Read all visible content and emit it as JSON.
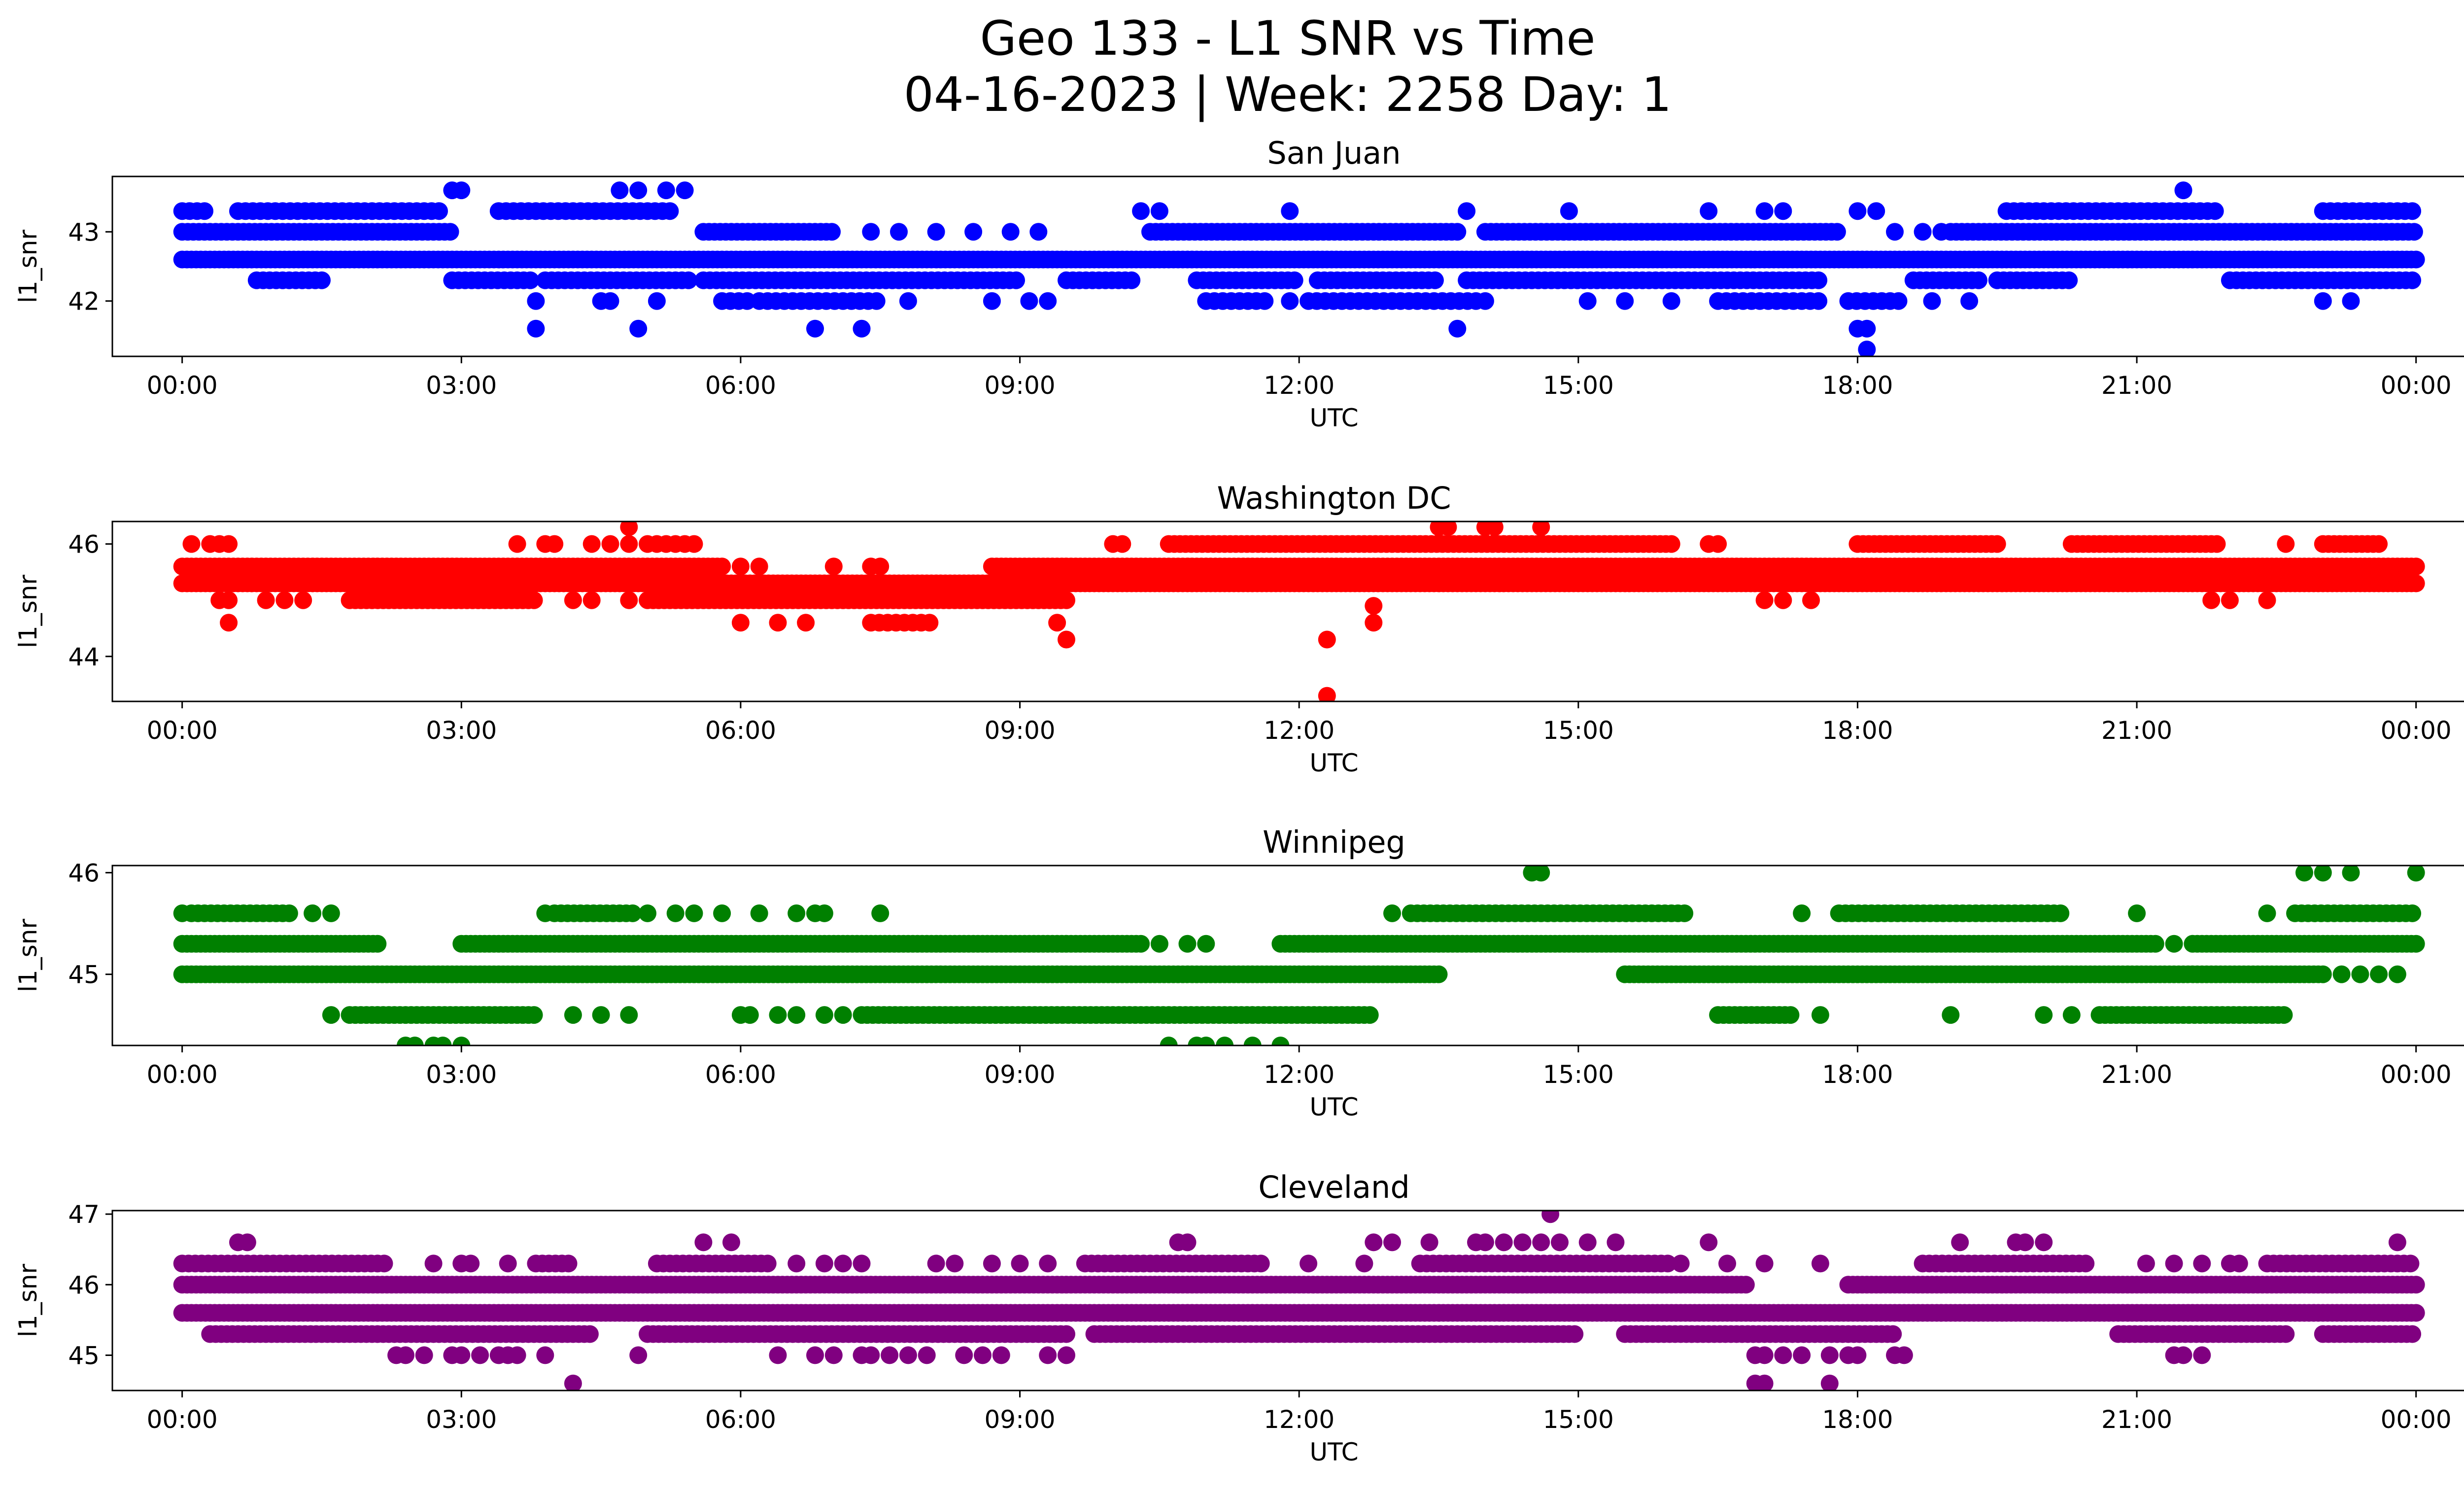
{
  "figure": {
    "title_line1": "Geo 133 - L1 SNR vs Time",
    "title_line2": "04-16-2023 | Week: 2258 Day: 1"
  },
  "chart_data": [
    {
      "type": "scatter",
      "title": "San Juan",
      "xlabel": "UTC",
      "ylabel": "l1_snr",
      "color": "#0000ff",
      "xlim_hours": [
        -0.75,
        25.5
      ],
      "ylim": [
        41.2,
        43.8
      ],
      "x_ticks": [
        "00:00",
        "03:00",
        "06:00",
        "09:00",
        "12:00",
        "15:00",
        "18:00",
        "21:00",
        "00:00"
      ],
      "y_ticks": [
        42,
        43
      ],
      "bands": [
        {
          "y": 42.6,
          "segments": [
            [
              0.0,
              24.0
            ]
          ],
          "spacing": 0.05
        },
        {
          "y": 43.0,
          "segments": [
            [
              0.0,
              2.9
            ],
            [
              5.6,
              7.0
            ],
            [
              10.4,
              13.7
            ],
            [
              14.0,
              17.8
            ],
            [
              19.0,
              24.0
            ]
          ],
          "spacing": 0.06
        },
        {
          "y": 43.3,
          "segments": [
            [
              0.0,
              0.3
            ],
            [
              0.6,
              2.8
            ],
            [
              3.4,
              5.3
            ],
            [
              19.6,
              21.9
            ],
            [
              23.0,
              24.0
            ]
          ],
          "spacing": 0.08
        },
        {
          "y": 42.3,
          "segments": [
            [
              0.8,
              1.5
            ],
            [
              2.9,
              3.8
            ],
            [
              3.9,
              5.5
            ],
            [
              5.6,
              9.0
            ],
            [
              9.5,
              10.2
            ],
            [
              10.9,
              12.0
            ],
            [
              12.2,
              13.5
            ],
            [
              13.8,
              17.6
            ],
            [
              18.6,
              19.3
            ],
            [
              19.5,
              20.3
            ],
            [
              22.0,
              24.0
            ]
          ],
          "spacing": 0.07
        },
        {
          "y": 42.0,
          "segments": [
            [
              5.8,
              6.1
            ],
            [
              6.2,
              7.5
            ],
            [
              11.0,
              11.7
            ],
            [
              12.1,
              13.9
            ],
            [
              16.5,
              17.6
            ],
            [
              17.9,
              18.5
            ]
          ],
          "spacing": 0.09
        },
        {
          "y": 42.0,
          "points": [
            3.8,
            4.5,
            4.6,
            5.1,
            7.8,
            8.7,
            9.1,
            9.3,
            11.9,
            14.0,
            15.1,
            15.5,
            16.0,
            18.8,
            19.2,
            23.0,
            23.3
          ]
        },
        {
          "y": 43.0,
          "points": [
            8.1,
            8.5,
            8.9,
            9.2,
            7.7,
            7.4,
            18.4,
            18.7,
            18.9
          ]
        },
        {
          "y": 43.6,
          "points": [
            2.9,
            3.0,
            4.7,
            4.9,
            5.2,
            5.4,
            21.5
          ]
        },
        {
          "y": 43.3,
          "points": [
            10.3,
            10.5,
            11.9,
            13.8,
            14.9,
            16.4,
            17.0,
            17.2,
            18.0,
            18.2
          ]
        },
        {
          "y": 41.6,
          "points": [
            3.8,
            4.9,
            6.8,
            7.3,
            13.7,
            18.0,
            18.1
          ]
        },
        {
          "y": 41.3,
          "points": [
            18.1
          ]
        }
      ]
    },
    {
      "type": "scatter",
      "title": "Washington DC",
      "xlabel": "UTC",
      "ylabel": "l1_snr",
      "color": "#ff0000",
      "xlim_hours": [
        -0.75,
        25.5
      ],
      "ylim": [
        43.2,
        46.4
      ],
      "x_ticks": [
        "00:00",
        "03:00",
        "06:00",
        "09:00",
        "12:00",
        "15:00",
        "18:00",
        "21:00",
        "00:00"
      ],
      "y_ticks": [
        44,
        46
      ],
      "bands": [
        {
          "y": 45.3,
          "segments": [
            [
              0.0,
              5.3
            ],
            [
              9.3,
              24.0
            ]
          ],
          "spacing": 0.05
        },
        {
          "y": 45.6,
          "segments": [
            [
              0.0,
              5.8
            ],
            [
              8.7,
              24.0
            ]
          ],
          "spacing": 0.05
        },
        {
          "y": 45.0,
          "segments": [
            [
              1.8,
              3.8
            ],
            [
              5.0,
              9.5
            ]
          ],
          "spacing": 0.06
        },
        {
          "y": 45.3,
          "segments": [
            [
              5.3,
              9.3
            ]
          ],
          "spacing": 0.05
        },
        {
          "y": 46.0,
          "segments": [
            [
              10.6,
              16.0
            ],
            [
              18.0,
              19.5
            ],
            [
              20.3,
              21.9
            ],
            [
              23.0,
              23.6
            ]
          ],
          "spacing": 0.06
        },
        {
          "y": 44.6,
          "segments": [
            [
              7.4,
              8.1
            ]
          ],
          "spacing": 0.09
        },
        {
          "y": 46.0,
          "points": [
            0.1,
            0.3,
            0.4,
            0.5,
            3.6,
            3.9,
            4.0,
            4.4,
            4.6,
            4.8,
            5.0,
            5.1,
            5.2,
            5.3,
            5.4,
            5.5,
            10.0,
            10.1,
            16.4,
            16.5,
            22.6
          ]
        },
        {
          "y": 45.0,
          "points": [
            0.4,
            0.5,
            0.9,
            1.1,
            1.3,
            4.2,
            4.4,
            4.8,
            17.0,
            17.2,
            17.5,
            21.8,
            22.0,
            22.4
          ]
        },
        {
          "y": 44.6,
          "points": [
            0.5,
            6.0,
            6.4,
            6.7,
            9.4,
            12.8
          ]
        },
        {
          "y": 46.3,
          "points": [
            4.8,
            13.5,
            13.6,
            14.0,
            14.1,
            14.6
          ]
        },
        {
          "y": 45.6,
          "points": [
            6.0,
            6.2,
            7.0,
            7.4,
            7.5
          ]
        },
        {
          "y": 44.3,
          "points": [
            9.5,
            12.3
          ]
        },
        {
          "y": 44.9,
          "points": [
            12.8
          ]
        },
        {
          "y": 43.3,
          "points": [
            12.3
          ]
        }
      ]
    },
    {
      "type": "scatter",
      "title": "Winnipeg",
      "xlabel": "UTC",
      "ylabel": "l1_snr",
      "color": "#008000",
      "xlim_hours": [
        -0.75,
        25.5
      ],
      "ylim": [
        44.3,
        46.07
      ],
      "x_ticks": [
        "00:00",
        "03:00",
        "06:00",
        "09:00",
        "12:00",
        "15:00",
        "18:00",
        "21:00",
        "00:00"
      ],
      "y_ticks": [
        45,
        46
      ],
      "bands": [
        {
          "y": 45.0,
          "segments": [
            [
              0.0,
              13.5
            ],
            [
              15.5,
              23.0
            ]
          ],
          "spacing": 0.05
        },
        {
          "y": 45.3,
          "segments": [
            [
              0.0,
              2.1
            ],
            [
              3.0,
              10.3
            ],
            [
              11.8,
              21.2
            ],
            [
              21.6,
              24.0
            ]
          ],
          "spacing": 0.05
        },
        {
          "y": 45.6,
          "segments": [
            [
              0.1,
              1.2
            ],
            [
              4.0,
              4.9
            ],
            [
              13.2,
              16.2
            ],
            [
              17.8,
              20.2
            ],
            [
              22.7,
              24.0
            ]
          ],
          "spacing": 0.07
        },
        {
          "y": 44.6,
          "segments": [
            [
              1.8,
              3.8
            ],
            [
              7.3,
              12.8
            ],
            [
              16.5,
              17.3
            ],
            [
              20.6,
              22.6
            ]
          ],
          "spacing": 0.06
        },
        {
          "y": 44.6,
          "points": [
            1.6,
            4.2,
            4.5,
            4.8,
            6.0,
            6.1,
            6.4,
            6.6,
            6.9,
            7.1,
            17.6,
            19.0,
            20.0,
            20.3
          ]
        },
        {
          "y": 45.6,
          "points": [
            0.0,
            1.4,
            1.6,
            3.9,
            5.0,
            5.3,
            5.5,
            5.8,
            6.2,
            6.6,
            6.8,
            6.9,
            7.5,
            13.0,
            17.4,
            21.0,
            22.4
          ]
        },
        {
          "y": 45.0,
          "points": [
            23.2,
            23.4,
            23.6,
            23.8
          ]
        },
        {
          "y": 45.3,
          "points": [
            10.5,
            10.8,
            11.0,
            21.4
          ]
        },
        {
          "y": 44.3,
          "points": [
            2.4,
            2.5,
            2.7,
            2.8,
            3.0,
            10.6,
            10.9,
            11.0,
            11.2,
            11.5,
            11.8
          ]
        },
        {
          "y": 46.0,
          "points": [
            14.5,
            14.6,
            22.8,
            23.0,
            23.3,
            24.0
          ]
        }
      ]
    },
    {
      "type": "scatter",
      "title": "Cleveland",
      "xlabel": "UTC",
      "ylabel": "l1_snr",
      "color": "#800080",
      "xlim_hours": [
        -0.75,
        25.5
      ],
      "ylim": [
        44.5,
        47.05
      ],
      "x_ticks": [
        "00:00",
        "03:00",
        "06:00",
        "09:00",
        "12:00",
        "15:00",
        "18:00",
        "21:00",
        "00:00"
      ],
      "y_ticks": [
        45,
        46,
        47
      ],
      "bands": [
        {
          "y": 45.6,
          "segments": [
            [
              0.0,
              24.0
            ]
          ],
          "spacing": 0.05
        },
        {
          "y": 46.0,
          "segments": [
            [
              0.0,
              16.8
            ],
            [
              17.9,
              24.0
            ]
          ],
          "spacing": 0.05
        },
        {
          "y": 45.3,
          "segments": [
            [
              0.3,
              4.4
            ],
            [
              5.0,
              9.5
            ],
            [
              9.8,
              15.0
            ],
            [
              15.5,
              18.4
            ],
            [
              20.8,
              22.6
            ],
            [
              23.0,
              24.0
            ]
          ],
          "spacing": 0.06
        },
        {
          "y": 46.3,
          "segments": [
            [
              0.0,
              2.2
            ],
            [
              3.8,
              4.2
            ],
            [
              5.1,
              6.3
            ],
            [
              9.7,
              11.6
            ],
            [
              13.3,
              16.0
            ],
            [
              18.7,
              20.5
            ],
            [
              22.4,
              24.0
            ]
          ],
          "spacing": 0.07
        },
        {
          "y": 45.0,
          "points": [
            2.3,
            2.4,
            2.6,
            2.9,
            3.0,
            3.2,
            3.4,
            3.5,
            3.6,
            3.9,
            4.9,
            6.4,
            6.8,
            7.0,
            7.3,
            7.4,
            7.6,
            7.8,
            8.0,
            8.4,
            8.6,
            8.8,
            9.3,
            9.5,
            16.9,
            17.0,
            17.2,
            17.4,
            17.7,
            17.9,
            18.0,
            18.4,
            18.5,
            21.4,
            21.5,
            21.7
          ]
        },
        {
          "y": 46.3,
          "points": [
            2.7,
            3.0,
            3.1,
            3.5,
            6.6,
            6.9,
            7.1,
            7.3,
            8.1,
            8.3,
            8.7,
            9.0,
            9.3,
            12.1,
            12.7,
            16.1,
            16.6,
            21.1,
            21.4,
            21.7,
            22.0,
            22.1,
            17.0,
            17.6
          ]
        },
        {
          "y": 46.6,
          "points": [
            0.6,
            0.7,
            5.6,
            5.9,
            10.7,
            10.8,
            12.8,
            13.0,
            13.4,
            13.9,
            14.0,
            14.2,
            14.4,
            14.6,
            14.8,
            15.1,
            15.4,
            16.4,
            19.1,
            19.7,
            19.8,
            20.0,
            23.8
          ]
        },
        {
          "y": 44.6,
          "points": [
            4.2,
            16.9,
            17.0,
            17.7
          ]
        },
        {
          "y": 47.0,
          "points": [
            14.7
          ]
        }
      ]
    }
  ]
}
